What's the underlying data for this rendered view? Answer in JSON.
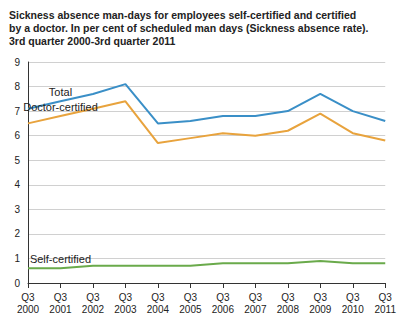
{
  "chart_data": {
    "type": "line",
    "title": "Sickness absence man-days for employees self-certified and certified\nby a doctor. In per cent of scheduled man days (Sickness absence rate).\n3rd quarter 2000-3rd quarter 2011",
    "categories": [
      "Q3\n2000",
      "Q3\n2001",
      "Q3\n2002",
      "Q3\n2003",
      "Q3\n2004",
      "Q3\n2005",
      "Q3\n2006",
      "Q3\n2007",
      "Q3\n2008",
      "Q3\n2009",
      "Q3\n2010",
      "Q3\n2011"
    ],
    "series": [
      {
        "name": "Total",
        "color": "#3a8fc7",
        "values": [
          7.1,
          7.4,
          7.7,
          8.1,
          6.5,
          6.6,
          6.8,
          6.8,
          7.0,
          7.7,
          7.0,
          6.6
        ]
      },
      {
        "name": "Doctor-certified",
        "color": "#e8a33d",
        "values": [
          6.5,
          6.8,
          7.1,
          7.4,
          5.7,
          5.9,
          6.1,
          6.0,
          6.2,
          6.9,
          6.1,
          5.8
        ]
      },
      {
        "name": "Self-certified",
        "color": "#6aaa4b",
        "values": [
          0.6,
          0.6,
          0.7,
          0.7,
          0.7,
          0.7,
          0.8,
          0.8,
          0.8,
          0.9,
          0.8,
          0.8
        ]
      }
    ],
    "ylim": [
      0,
      9
    ],
    "yticks": [
      0,
      1,
      2,
      3,
      4,
      5,
      6,
      7,
      8,
      9
    ],
    "grid": true
  }
}
